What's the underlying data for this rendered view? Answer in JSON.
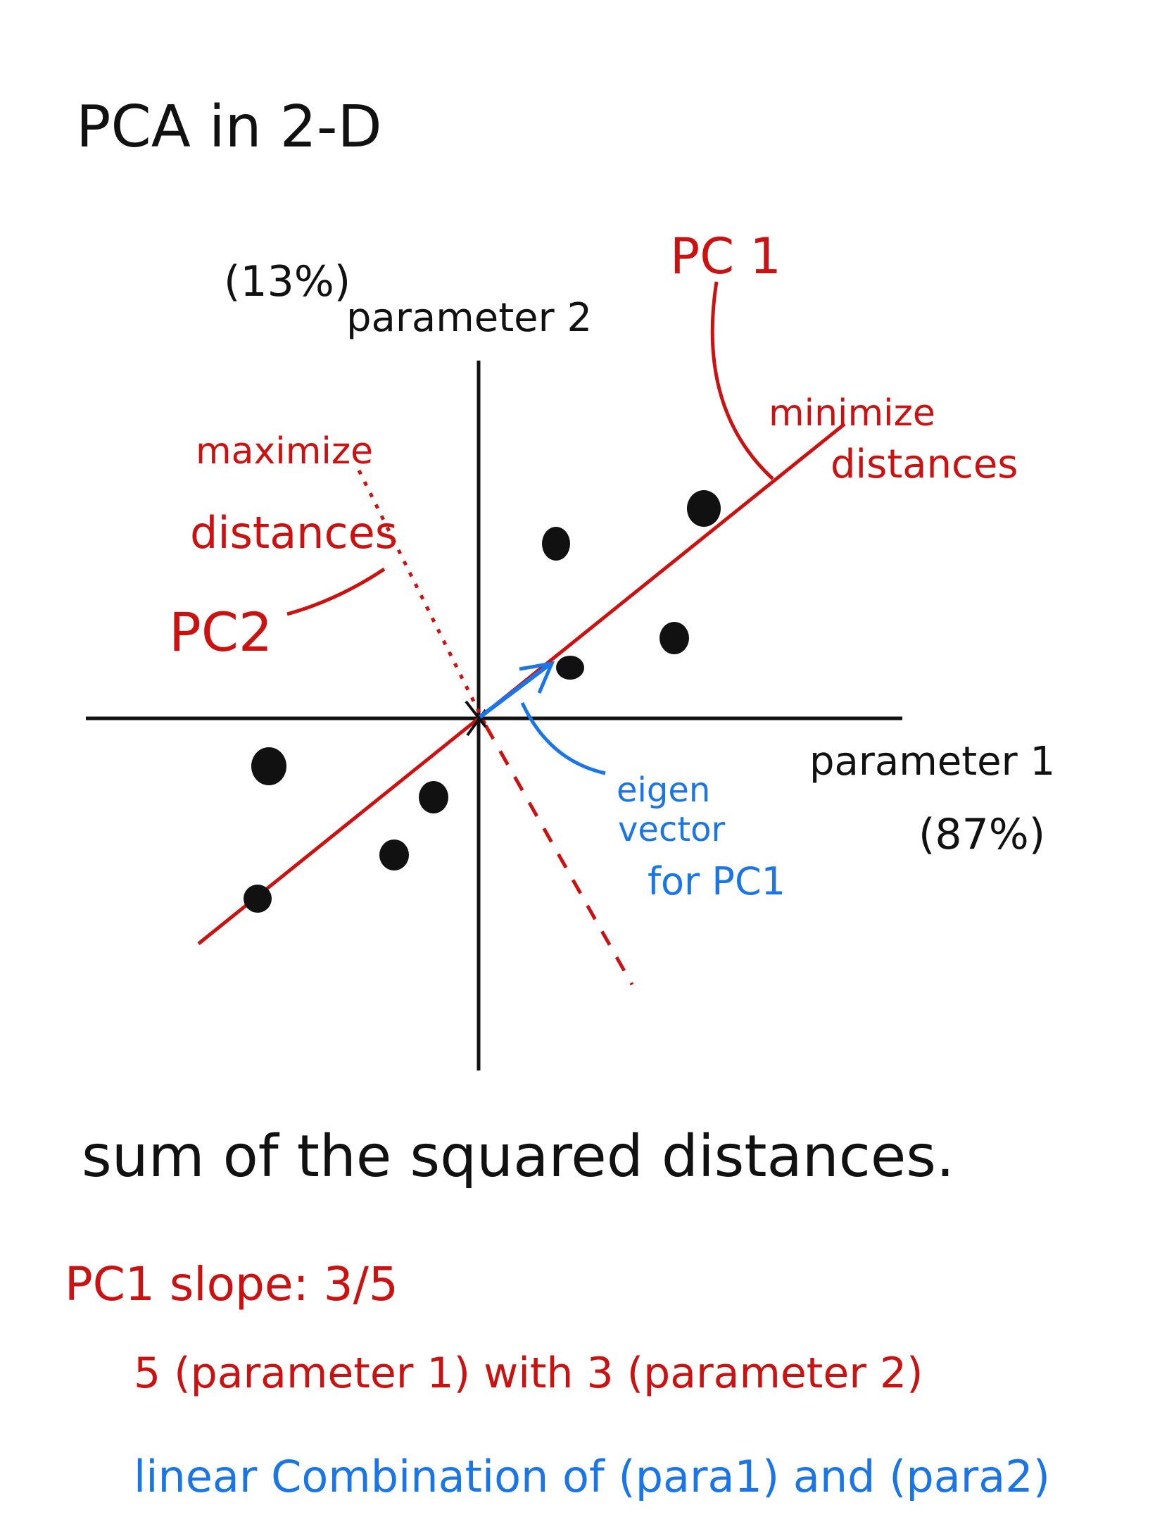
{
  "title": "PCA   in  2-D",
  "colors": {
    "black": "#111111",
    "red": "#cc1111",
    "blue": "#1a75e8"
  },
  "axes": {
    "y_label": "parameter 2",
    "y_percent": "(13%)",
    "x_label": "parameter 1",
    "x_percent": "(87%)"
  },
  "pc1": {
    "label": "PC 1",
    "note_line1": "minimize",
    "note_line2": "distances"
  },
  "pc2": {
    "label": "PC2",
    "note_line1": "maximize",
    "note_line2": "distances"
  },
  "eigen": {
    "line1": "eigen",
    "line2": "vector",
    "line3": "for PC1"
  },
  "footer": {
    "sum_line": "sum of  the  squared  distances.",
    "slope_line": "PC1    slope:  3/5",
    "combo_line": "5 (parameter 1)  with  3 (parameter 2)",
    "linear_line": "linear   Combination  of  (para1) and (para2)"
  },
  "icons": [
    "data-point-dot",
    "origin-mark",
    "eigenvector-arrow"
  ]
}
